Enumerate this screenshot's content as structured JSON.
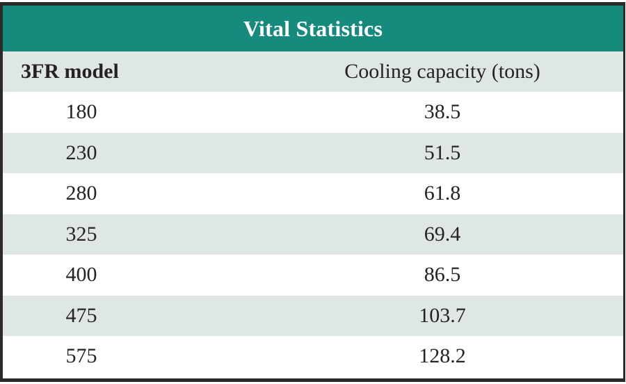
{
  "table": {
    "title": "Vital Statistics",
    "columns": {
      "model": "3FR model",
      "capacity": "Cooling capacity (tons)"
    },
    "rows": [
      {
        "model": "180",
        "capacity": "38.5"
      },
      {
        "model": "230",
        "capacity": "51.5"
      },
      {
        "model": "280",
        "capacity": "61.8"
      },
      {
        "model": "325",
        "capacity": "69.4"
      },
      {
        "model": "400",
        "capacity": "86.5"
      },
      {
        "model": "475",
        "capacity": "103.7"
      },
      {
        "model": "575",
        "capacity": "128.2"
      }
    ]
  },
  "colors": {
    "title_band": "#168a7d",
    "stripe": "#dfe7e3",
    "border": "#2b2929",
    "text": "#262223",
    "title_text": "#ffffff"
  },
  "chart_data": {
    "type": "table",
    "title": "Vital Statistics",
    "columns": [
      "3FR model",
      "Cooling capacity (tons)"
    ],
    "rows": [
      [
        180,
        38.5
      ],
      [
        230,
        51.5
      ],
      [
        280,
        61.8
      ],
      [
        325,
        69.4
      ],
      [
        400,
        86.5
      ],
      [
        475,
        103.7
      ],
      [
        575,
        128.2
      ]
    ]
  }
}
